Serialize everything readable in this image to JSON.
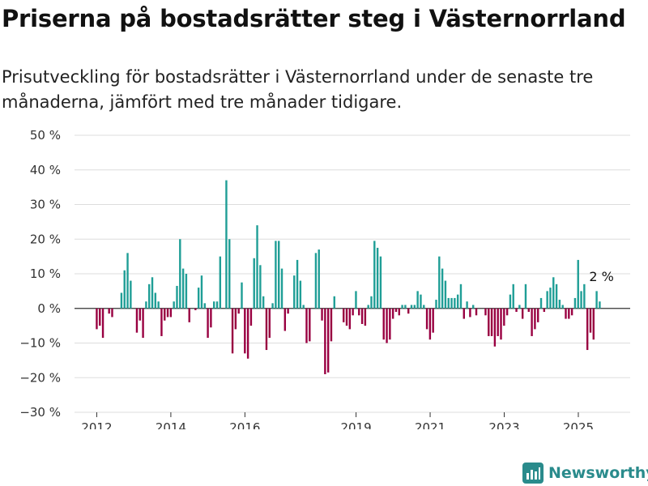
{
  "title": "Priserna på bostadsrätter steg i Västernorrland",
  "subtitle": "Prisutveckling för bostadsrätter i Västernorrland under de senaste tre månaderna, jämfört med tre månader tidigare.",
  "brand": "Newsworthy",
  "colors": {
    "positive": "#1f9e96",
    "negative": "#990041",
    "grid": "#dddddd",
    "axis": "#333333"
  },
  "chart_data": {
    "type": "bar",
    "title": "",
    "xlabel": "",
    "ylabel": "",
    "ylim": [
      -30,
      50
    ],
    "xlim": [
      2011.4,
      2026.4
    ],
    "grid": true,
    "y_ticks": [
      50,
      40,
      30,
      20,
      10,
      0,
      -10,
      -20,
      -30
    ],
    "y_tick_labels": [
      "50 %",
      "40 %",
      "30 %",
      "20 %",
      "10 %",
      "0 %",
      "−10 %",
      "−20 %",
      "−30 %"
    ],
    "x_ticks": [
      2012,
      2014,
      2016,
      2019,
      2021,
      2023,
      2025
    ],
    "x_tick_labels": [
      "2012",
      "2014",
      "2016",
      "2019",
      "2021",
      "2023",
      "2025"
    ],
    "annotation": {
      "text": "2 %",
      "x": 2025.6,
      "y": 2
    },
    "start": 2012.0,
    "step": 0.0833,
    "values": [
      -6,
      -5,
      -8.5,
      0,
      -1.5,
      -2.5,
      0,
      0,
      4.5,
      11,
      16,
      8,
      0,
      -7,
      -3.5,
      -8.5,
      2,
      7,
      9,
      4.5,
      2,
      -8,
      -3.5,
      -2.5,
      -2.5,
      2,
      6.5,
      20,
      11.5,
      10,
      -4,
      0,
      -0.5,
      6,
      9.5,
      1.5,
      -8.5,
      -5.5,
      2,
      2,
      15,
      0,
      37,
      20,
      -13,
      -6,
      -1.5,
      7.5,
      -13,
      -14.5,
      -5,
      14.5,
      24,
      12.5,
      3.5,
      -12,
      -8.5,
      1.5,
      19.5,
      19.5,
      11.5,
      -6.5,
      -1.5,
      0,
      9.5,
      14,
      8,
      1,
      -10,
      -9.5,
      0,
      16,
      17,
      -3.5,
      -19,
      -18.5,
      -9.5,
      3.5,
      0,
      0,
      -4,
      -5,
      -6,
      -2,
      5,
      -2,
      -4.5,
      -5,
      1,
      3.5,
      19.5,
      17.5,
      15,
      -9,
      -10,
      -9,
      -3,
      -1,
      -2,
      1,
      1,
      -1.5,
      1,
      1,
      5,
      4,
      1,
      -6,
      -9,
      -7,
      2.5,
      15,
      11.5,
      8,
      3,
      3,
      3,
      4,
      7,
      -3,
      2,
      -2.5,
      1,
      -2,
      0,
      0,
      -2,
      -8,
      -8,
      -11,
      -8,
      -9,
      -5,
      -2,
      4,
      7,
      -1,
      1,
      -3,
      7,
      -1,
      -8,
      -6,
      -4,
      3,
      -1,
      5,
      6,
      9,
      7,
      2.5,
      1,
      -3,
      -3,
      -2,
      3,
      14,
      5,
      7,
      -12,
      -7,
      -9,
      5,
      2
    ]
  }
}
